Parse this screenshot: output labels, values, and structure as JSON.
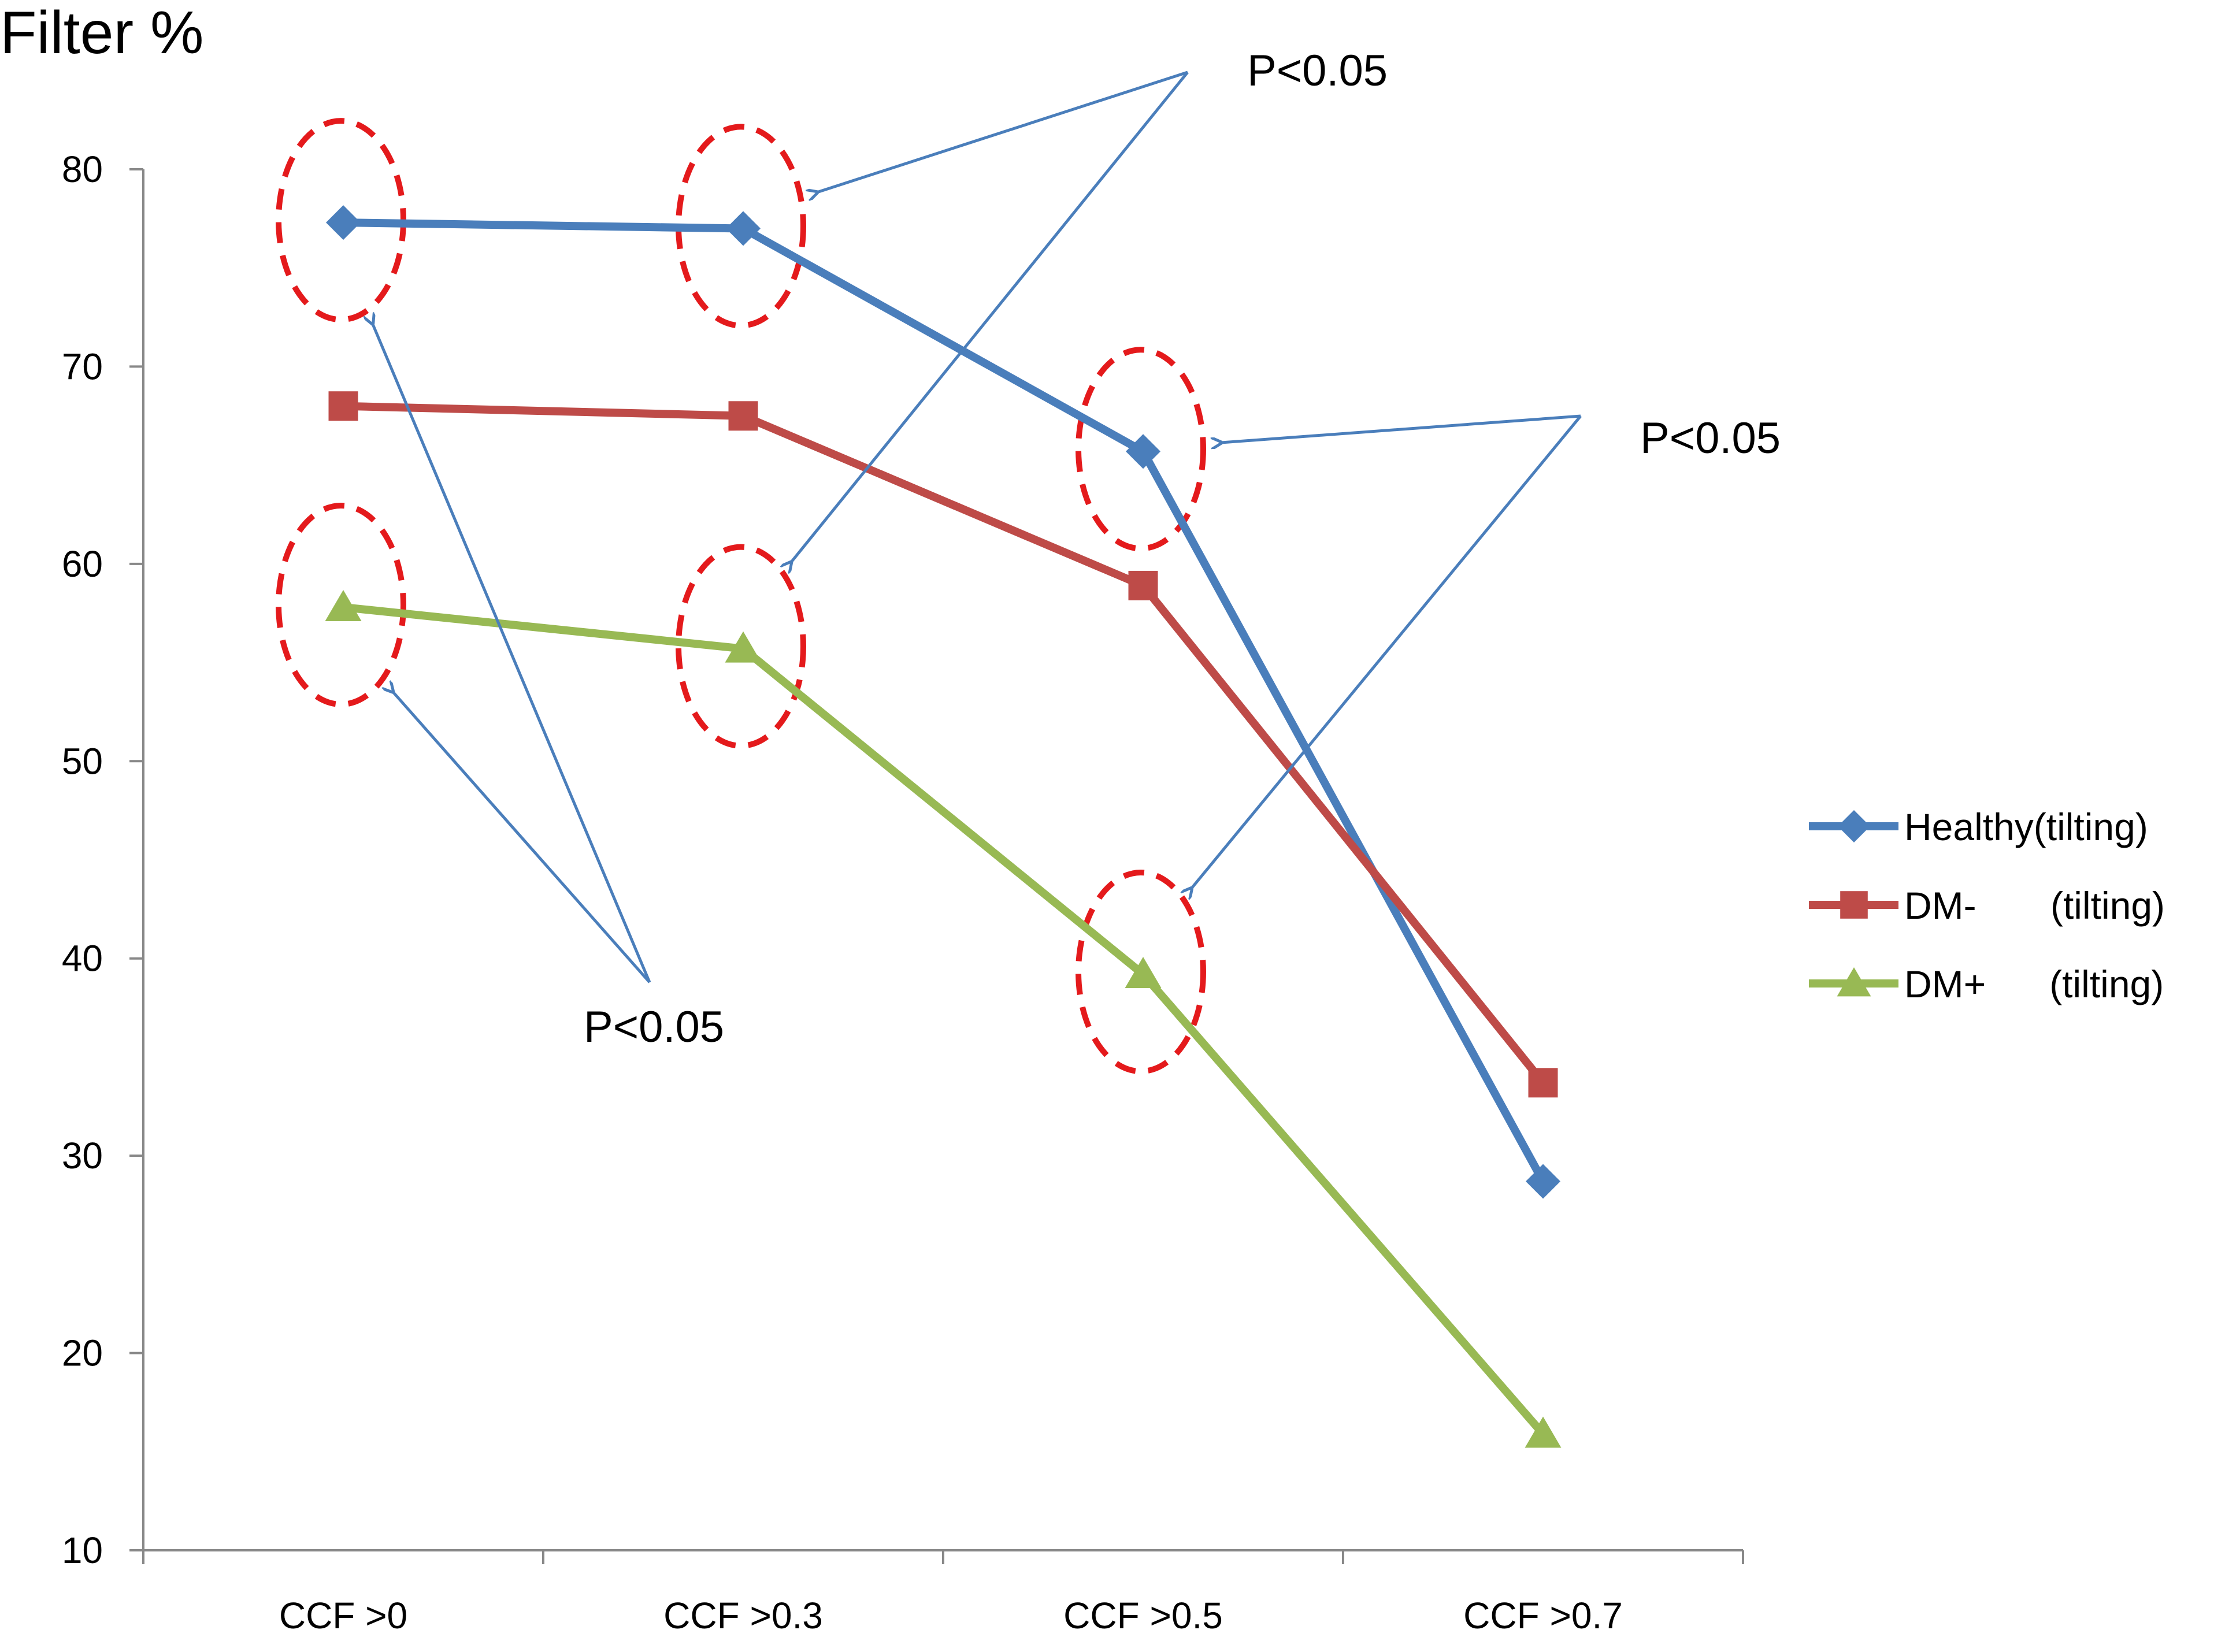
{
  "chart_data": {
    "type": "line",
    "ylabel": "Filter %",
    "xlabel": "",
    "categories": [
      "CCF >0",
      "CCF >0.3",
      "CCF >0.5",
      "CCF >0.7"
    ],
    "ylim": [
      10,
      80
    ],
    "yticks": [
      10,
      20,
      30,
      40,
      50,
      60,
      70,
      80
    ],
    "grid": false,
    "legend_position": "right",
    "series": [
      {
        "name": "Healthy(tilting)",
        "color": "#4a7ebb",
        "marker": "diamond",
        "values": [
          77.3,
          77.0,
          65.7,
          28.7
        ]
      },
      {
        "name": "DM-       (tilting)",
        "color": "#be4b48",
        "marker": "square",
        "values": [
          68.0,
          67.5,
          58.9,
          33.7
        ]
      },
      {
        "name": "DM+      (tilting)",
        "color": "#98b954",
        "marker": "triangle",
        "values": [
          57.8,
          55.7,
          39.2,
          15.9
        ]
      }
    ],
    "annotations": [
      {
        "text": "P<0.05",
        "targets": [
          [
            0,
            0
          ],
          [
            0,
            2
          ]
        ]
      },
      {
        "text": "P<0.05",
        "targets": [
          [
            1,
            0
          ],
          [
            1,
            2
          ]
        ]
      },
      {
        "text": "P<0.05",
        "targets": [
          [
            2,
            0
          ],
          [
            2,
            2
          ]
        ]
      }
    ]
  }
}
